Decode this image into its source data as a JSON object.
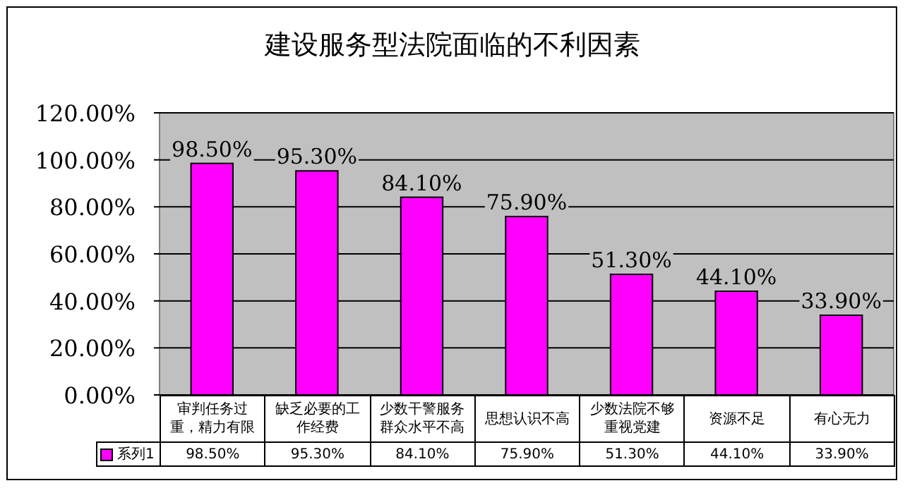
{
  "chart_data": {
    "type": "bar",
    "title": "建设服务型法院面临的不利因素",
    "categories": [
      "审判任务过重，精力有限",
      "缺乏必要的工作经费",
      "少数干警服务群众水平不高",
      "思想认识不高",
      "少数法院不够重视党建",
      "资源不足",
      "有心无力"
    ],
    "series": [
      {
        "name": "系列1",
        "color": "#ff00ff",
        "values": [
          98.5,
          95.3,
          84.1,
          75.9,
          51.3,
          44.1,
          33.9
        ],
        "value_labels": [
          "98.50%",
          "95.30%",
          "84.10%",
          "75.90%",
          "51.30%",
          "44.10%",
          "33.90%"
        ]
      }
    ],
    "ylim": [
      0,
      120
    ],
    "yticks": [
      {
        "value": 0,
        "label": "0.00%"
      },
      {
        "value": 20,
        "label": "20.00%"
      },
      {
        "value": 40,
        "label": "40.00%"
      },
      {
        "value": 60,
        "label": "60.00%"
      },
      {
        "value": 80,
        "label": "80.00%"
      },
      {
        "value": 100,
        "label": "100.00%"
      },
      {
        "value": 120,
        "label": "120.00%"
      }
    ],
    "grid": "y",
    "legend": "bottom"
  }
}
